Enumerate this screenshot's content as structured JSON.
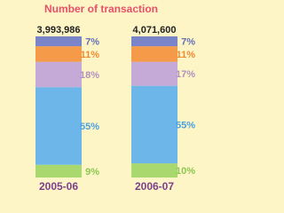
{
  "chart_data": {
    "type": "stacked_bar",
    "title": "Number of transaction",
    "categories": [
      "2005-06",
      "2006-07"
    ],
    "totals": {
      "values": [
        3993986,
        4071600
      ],
      "value_labels": [
        "3,993,986",
        "4,071,600"
      ]
    },
    "ylim": [
      0,
      100
    ],
    "series": [
      {
        "color": "#a9d86f",
        "label_color": "#8cc850",
        "values": [
          9,
          10
        ],
        "value_labels": [
          "9%",
          "10%"
        ]
      },
      {
        "color": "#6cb6ea",
        "label_color": "#4aa0e0",
        "values": [
          55,
          55
        ],
        "value_labels": [
          "55%",
          "55%"
        ]
      },
      {
        "color": "#c5a9d6",
        "label_color": "#b090c0",
        "values": [
          18,
          17
        ],
        "value_labels": [
          "18%",
          "17%"
        ]
      },
      {
        "color": "#f59a48",
        "label_color": "#f08a30",
        "values": [
          11,
          11
        ],
        "value_labels": [
          "11%",
          "11%"
        ]
      },
      {
        "color": "#7a84c8",
        "label_color": "#6670b8",
        "values": [
          7,
          7
        ],
        "value_labels": [
          "7%",
          "7%"
        ]
      }
    ]
  }
}
